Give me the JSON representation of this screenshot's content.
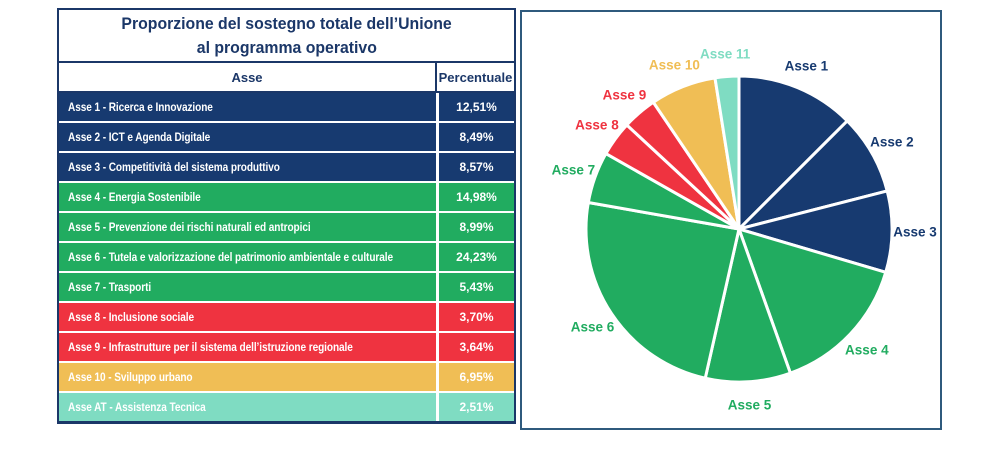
{
  "table": {
    "title_line1": "Proporzione del sostegno totale dell’Unione",
    "title_line2": "al programma operativo",
    "columns": [
      "Asse",
      "Percentuale"
    ],
    "rows": [
      {
        "label": "Asse 1 - Ricerca e Innovazione",
        "value": "12,51%",
        "color": "#173A70"
      },
      {
        "label": "Asse 2 - ICT e Agenda Digitale",
        "value": "8,49%",
        "color": "#173A70"
      },
      {
        "label": "Asse 3 - Competitività del sistema produttivo",
        "value": "8,57%",
        "color": "#173A70"
      },
      {
        "label": "Asse 4 - Energia Sostenibile",
        "value": "14,98%",
        "color": "#21AC60"
      },
      {
        "label": "Asse 5 - Prevenzione dei rischi naturali ed antropici",
        "value": "8,99%",
        "color": "#21AC60"
      },
      {
        "label": "Asse 6 - Tutela e valorizzazione del patrimonio ambientale e culturale",
        "value": "24,23%",
        "color": "#21AC60"
      },
      {
        "label": "Asse 7 - Trasporti",
        "value": "5,43%",
        "color": "#21AC60"
      },
      {
        "label": "Asse 8 - Inclusione sociale",
        "value": "3,70%",
        "color": "#EF3340"
      },
      {
        "label": "Asse 9 - Infrastrutture per il sistema dell’istruzione regionale",
        "value": "3,64%",
        "color": "#EF3340"
      },
      {
        "label": "Asse 10 - Sviluppo urbano",
        "value": "6,95%",
        "color": "#F0BE55"
      },
      {
        "label": "Asse AT - Assistenza Tecnica",
        "value": "2,51%",
        "color": "#7FDCC2"
      }
    ]
  },
  "chart_data": {
    "type": "pie",
    "title": "",
    "legend_position": "none",
    "start_position": "top",
    "direction": "clockwise",
    "slice_border_color": "#FFFFFF",
    "series": [
      {
        "name": "Asse 1",
        "value": 12.51,
        "color": "#173A70"
      },
      {
        "name": "Asse 2",
        "value": 8.49,
        "color": "#173A70"
      },
      {
        "name": "Asse 3",
        "value": 8.57,
        "color": "#173A70"
      },
      {
        "name": "Asse 4",
        "value": 14.98,
        "color": "#21AC60"
      },
      {
        "name": "Asse 5",
        "value": 8.99,
        "color": "#21AC60"
      },
      {
        "name": "Asse 6",
        "value": 24.23,
        "color": "#21AC60"
      },
      {
        "name": "Asse 7",
        "value": 5.43,
        "color": "#21AC60"
      },
      {
        "name": "Asse 8",
        "value": 3.7,
        "color": "#EF3340"
      },
      {
        "name": "Asse 9",
        "value": 3.64,
        "color": "#EF3340"
      },
      {
        "name": "Asse 10",
        "value": 6.95,
        "color": "#F0BE55"
      },
      {
        "name": "Asse 11",
        "value": 2.51,
        "color": "#7FDCC2"
      }
    ]
  },
  "colors": {
    "navy": "#173A70",
    "green": "#21AC60",
    "red": "#EF3340",
    "amber": "#F0BE55",
    "teal": "#7FDCC2",
    "title_text": "#1B3768",
    "panel_border": "#2F5A7D"
  }
}
